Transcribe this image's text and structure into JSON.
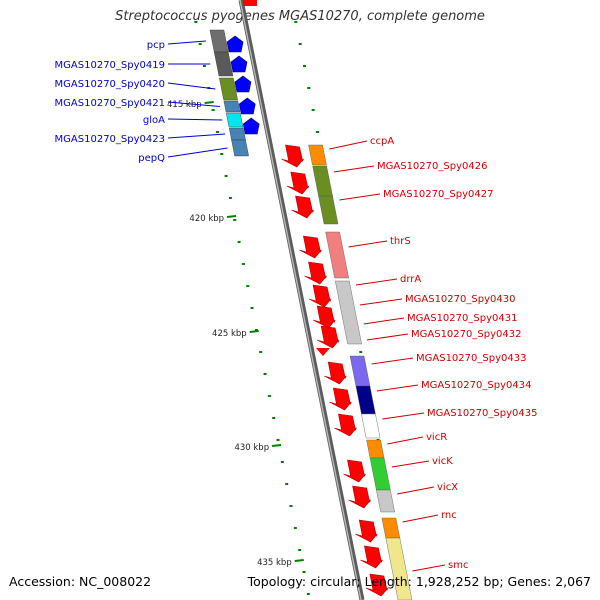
{
  "title": "Streptococcus pyogenes MGAS10270, complete genome",
  "footer": {
    "accession": "Accession: NC_008022",
    "summary": "Topology: circular; Length: 1,928,252 bp; Genes: 2,067"
  },
  "colors": {
    "backbone": "#8a8a8a",
    "strand_arrow": "#ff0000",
    "left_label": "#0000cc",
    "right_label": "#cc0000",
    "tick": "#008000",
    "kbp_label": "#222222"
  },
  "scale_labels": [
    "415 kbp",
    "420 kbp",
    "425 kbp",
    "430 kbp",
    "435 kbp"
  ],
  "left_genes": [
    {
      "label": "pcp",
      "color": "#6e6e6e"
    },
    {
      "label": "MGAS10270_Spy0419",
      "color": "#5a5a5a"
    },
    {
      "label": "MGAS10270_Spy0420",
      "color": "#6b8e23"
    },
    {
      "label": "MGAS10270_Spy0421",
      "color": "#4682b4"
    },
    {
      "label": "gloA",
      "color": "#00e5ee"
    },
    {
      "label": "MGAS10270_Spy0423",
      "color": "#4682b4"
    },
    {
      "label": "pepQ",
      "color": "#4682b4"
    }
  ],
  "right_genes": [
    {
      "label": "ccpA",
      "color": "#ff8c00"
    },
    {
      "label": "MGAS10270_Spy0426",
      "color": "#6b8e23"
    },
    {
      "label": "MGAS10270_Spy0427",
      "color": "#6b8e23"
    },
    {
      "label": "thrS",
      "color": "#f08080"
    },
    {
      "label": "drrA",
      "color": "#c8c8c8"
    },
    {
      "label": "MGAS10270_Spy0430",
      "color": "#c8c8c8"
    },
    {
      "label": "MGAS10270_Spy0431",
      "color": "#c8c8c8"
    },
    {
      "label": "MGAS10270_Spy0432",
      "color": "#c8c8c8"
    },
    {
      "label": "MGAS10270_Spy0433",
      "color": "#7b68ee"
    },
    {
      "label": "MGAS10270_Spy0434",
      "color": "#00008b"
    },
    {
      "label": "MGAS10270_Spy0435",
      "color": "#ffffff"
    },
    {
      "label": "vicR",
      "color": "#ff8c00"
    },
    {
      "label": "vicK",
      "color": "#32cd32"
    },
    {
      "label": "vicX",
      "color": "#c8c8c8"
    },
    {
      "label": "rnc",
      "color": "#ff8c00"
    },
    {
      "label": "smc",
      "color": "#f0e68c"
    }
  ]
}
